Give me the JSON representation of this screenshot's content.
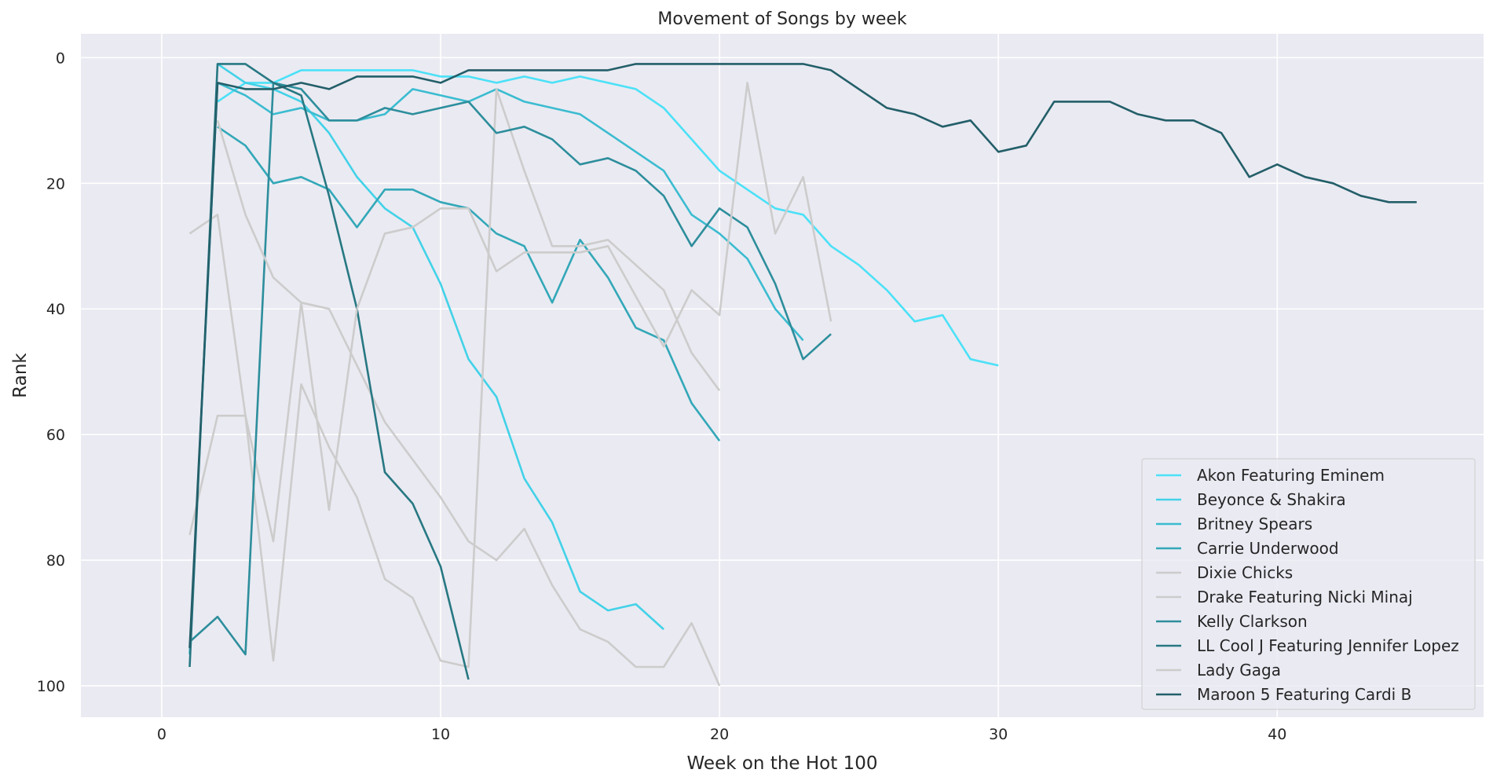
{
  "chart_data": {
    "type": "line",
    "title": "Movement of Songs by week",
    "xlabel": "Week on the Hot 100",
    "ylabel": "Rank",
    "xlim": [
      -2.9,
      47.4
    ],
    "ylim": [
      105,
      -3.8
    ],
    "y_inverted": true,
    "xticks": [
      0,
      10,
      20,
      30,
      40
    ],
    "yticks": [
      0,
      20,
      40,
      60,
      80,
      100
    ],
    "grid": true,
    "legend_position": "lower-right",
    "colors": {
      "background": "#EAEAF2",
      "grid": "#FFFFFF",
      "text": "#262626"
    },
    "series": [
      {
        "name": "Akon Featuring Eminem",
        "color": "#4BE1F7",
        "x": [
          2,
          3,
          4,
          5,
          6,
          7,
          8,
          9,
          10,
          11,
          12,
          13,
          14,
          15,
          16,
          17,
          18,
          19,
          20,
          21,
          22,
          23,
          24,
          25,
          26,
          27,
          28,
          29,
          30
        ],
        "y": [
          7,
          4,
          4,
          2,
          2,
          2,
          2,
          2,
          3,
          3,
          4,
          3,
          4,
          3,
          4,
          5,
          8,
          13,
          18,
          21,
          24,
          25,
          30,
          33,
          37,
          42,
          41,
          48,
          49
        ]
      },
      {
        "name": "Beyonce & Shakira",
        "color": "#42D2E8",
        "x": [
          2,
          3,
          4,
          5,
          6,
          7,
          8,
          9,
          10,
          11,
          12,
          13,
          14,
          15,
          16,
          17,
          18
        ],
        "y": [
          1,
          4,
          5,
          7,
          12,
          19,
          24,
          27,
          36,
          48,
          54,
          67,
          74,
          85,
          88,
          87,
          91
        ]
      },
      {
        "name": "Britney Spears",
        "color": "#3BBCD0",
        "x": [
          1,
          2,
          3,
          4,
          5,
          6,
          7,
          8,
          9,
          10,
          11,
          12,
          13,
          14,
          15,
          16,
          17,
          18,
          19,
          20,
          21,
          22,
          23
        ],
        "y": [
          95,
          4,
          6,
          9,
          8,
          10,
          10,
          9,
          5,
          6,
          7,
          5,
          7,
          8,
          9,
          12,
          15,
          18,
          25,
          28,
          32,
          40,
          45
        ]
      },
      {
        "name": "Carrie Underwood",
        "color": "#33A8B8",
        "x": [
          2,
          3,
          4,
          5,
          6,
          7,
          8,
          9,
          10,
          11,
          12,
          13,
          14,
          15,
          16,
          17,
          18,
          19,
          20
        ],
        "y": [
          11,
          14,
          20,
          19,
          21,
          27,
          21,
          21,
          23,
          24,
          28,
          30,
          39,
          29,
          35,
          43,
          45,
          55,
          61
        ]
      },
      {
        "name": "Dixie Chicks",
        "color": "#CCCCCC",
        "x": [
          1,
          2,
          3,
          4,
          5,
          6,
          7,
          8,
          9,
          10,
          11,
          12,
          13,
          14,
          15,
          16,
          17,
          18,
          19,
          20
        ],
        "y": [
          28,
          25,
          57,
          77,
          39,
          40,
          49,
          58,
          64,
          70,
          77,
          80,
          75,
          84,
          91,
          93,
          97,
          97,
          90,
          100
        ]
      },
      {
        "name": "Drake Featuring Nicki Minaj",
        "color": "#CCCCCC",
        "x": [
          1,
          2,
          3,
          4,
          5,
          6,
          7,
          8,
          9,
          10,
          11,
          12,
          13,
          14,
          15,
          16,
          17,
          18,
          19,
          20
        ],
        "y": [
          76,
          57,
          57,
          96,
          52,
          62,
          70,
          83,
          86,
          96,
          97,
          5,
          18,
          30,
          30,
          29,
          33,
          37,
          47,
          53
        ]
      },
      {
        "name": "Kelly Clarkson",
        "color": "#2D8E9C",
        "x": [
          1,
          2,
          3,
          4,
          5,
          6,
          7,
          8,
          9,
          10,
          11,
          12,
          13,
          14,
          15,
          16,
          17,
          18,
          19,
          20,
          21,
          22,
          23,
          24
        ],
        "y": [
          93,
          89,
          95,
          4,
          5,
          10,
          10,
          8,
          9,
          8,
          7,
          12,
          11,
          13,
          17,
          16,
          18,
          22,
          30,
          24,
          27,
          36,
          48,
          44
        ]
      },
      {
        "name": "LL Cool J Featuring Jennifer Lopez",
        "color": "#277882",
        "x": [
          1,
          2,
          3,
          4,
          5,
          6,
          7,
          8,
          9,
          10,
          11
        ],
        "y": [
          97,
          1,
          1,
          4,
          6,
          22,
          40,
          66,
          71,
          81,
          99
        ]
      },
      {
        "name": "Lady Gaga",
        "color": "#CCCCCC",
        "x": [
          2,
          3,
          4,
          5,
          6,
          7,
          8,
          9,
          10,
          11,
          12,
          13,
          14,
          15,
          16,
          17,
          18,
          19,
          20,
          21,
          22,
          23,
          24
        ],
        "y": [
          10,
          25,
          35,
          39,
          72,
          40,
          28,
          27,
          24,
          24,
          34,
          31,
          31,
          31,
          30,
          38,
          46,
          37,
          41,
          4,
          28,
          19,
          42
        ]
      },
      {
        "name": "Maroon 5 Featuring Cardi B",
        "color": "#235F69",
        "x": [
          1,
          2,
          3,
          4,
          5,
          6,
          7,
          8,
          9,
          10,
          11,
          12,
          13,
          14,
          15,
          16,
          17,
          18,
          19,
          20,
          21,
          22,
          23,
          24,
          25,
          26,
          27,
          28,
          29,
          30,
          31,
          32,
          33,
          34,
          35,
          36,
          37,
          38,
          39,
          40,
          41,
          42,
          43,
          44,
          45
        ],
        "y": [
          94,
          4,
          5,
          5,
          4,
          5,
          3,
          3,
          3,
          4,
          2,
          2,
          2,
          2,
          2,
          2,
          1,
          1,
          1,
          1,
          1,
          1,
          1,
          2,
          5,
          8,
          9,
          11,
          10,
          15,
          14,
          7,
          7,
          7,
          9,
          10,
          10,
          12,
          19,
          17,
          19,
          20,
          22,
          23,
          23
        ]
      }
    ]
  }
}
